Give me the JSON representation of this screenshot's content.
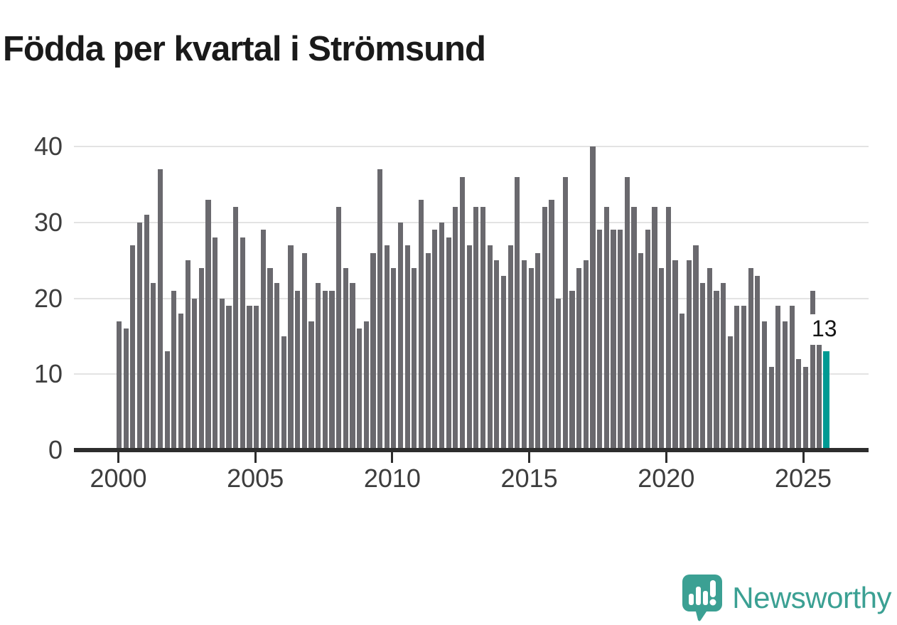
{
  "title": "Födda per kvartal i Strömsund",
  "annotation": {
    "last_value_label": "13"
  },
  "branding": {
    "name": "Newsworthy"
  },
  "chart_data": {
    "type": "bar",
    "title": "Födda per kvartal i Strömsund",
    "frequency": "quarterly",
    "period_start": "2000 Q1",
    "period_end": "2025 Q4",
    "values": [
      17,
      16,
      27,
      30,
      31,
      22,
      37,
      13,
      21,
      18,
      25,
      20,
      24,
      33,
      28,
      20,
      19,
      32,
      28,
      19,
      19,
      29,
      24,
      22,
      15,
      27,
      21,
      26,
      17,
      22,
      21,
      21,
      32,
      24,
      22,
      16,
      17,
      26,
      37,
      27,
      24,
      30,
      27,
      24,
      33,
      26,
      29,
      30,
      28,
      32,
      36,
      27,
      32,
      32,
      27,
      25,
      23,
      27,
      36,
      25,
      24,
      26,
      32,
      33,
      20,
      36,
      21,
      24,
      25,
      40,
      29,
      32,
      29,
      29,
      36,
      32,
      26,
      29,
      32,
      24,
      32,
      25,
      18,
      25,
      27,
      22,
      24,
      21,
      22,
      15,
      19,
      19,
      24,
      23,
      17,
      11,
      19,
      17,
      19,
      12,
      11,
      21,
      14,
      13
    ],
    "highlight_index": 103,
    "highlight_value": 13,
    "x_tick_labels": [
      "2000",
      "2005",
      "2010",
      "2015",
      "2020",
      "2025"
    ],
    "y_tick_labels": [
      "0",
      "10",
      "20",
      "30",
      "40"
    ],
    "y_ticks": [
      0,
      10,
      20,
      30,
      40
    ],
    "ylim": [
      0,
      40
    ],
    "grid": "horizontal",
    "legend": "none",
    "bar_color": "#6a696e",
    "highlight_color": "#009a93",
    "axis_color": "#2d2d2d",
    "gridline_color": "#e3e3e3",
    "label_color": "#3d3d3d"
  }
}
